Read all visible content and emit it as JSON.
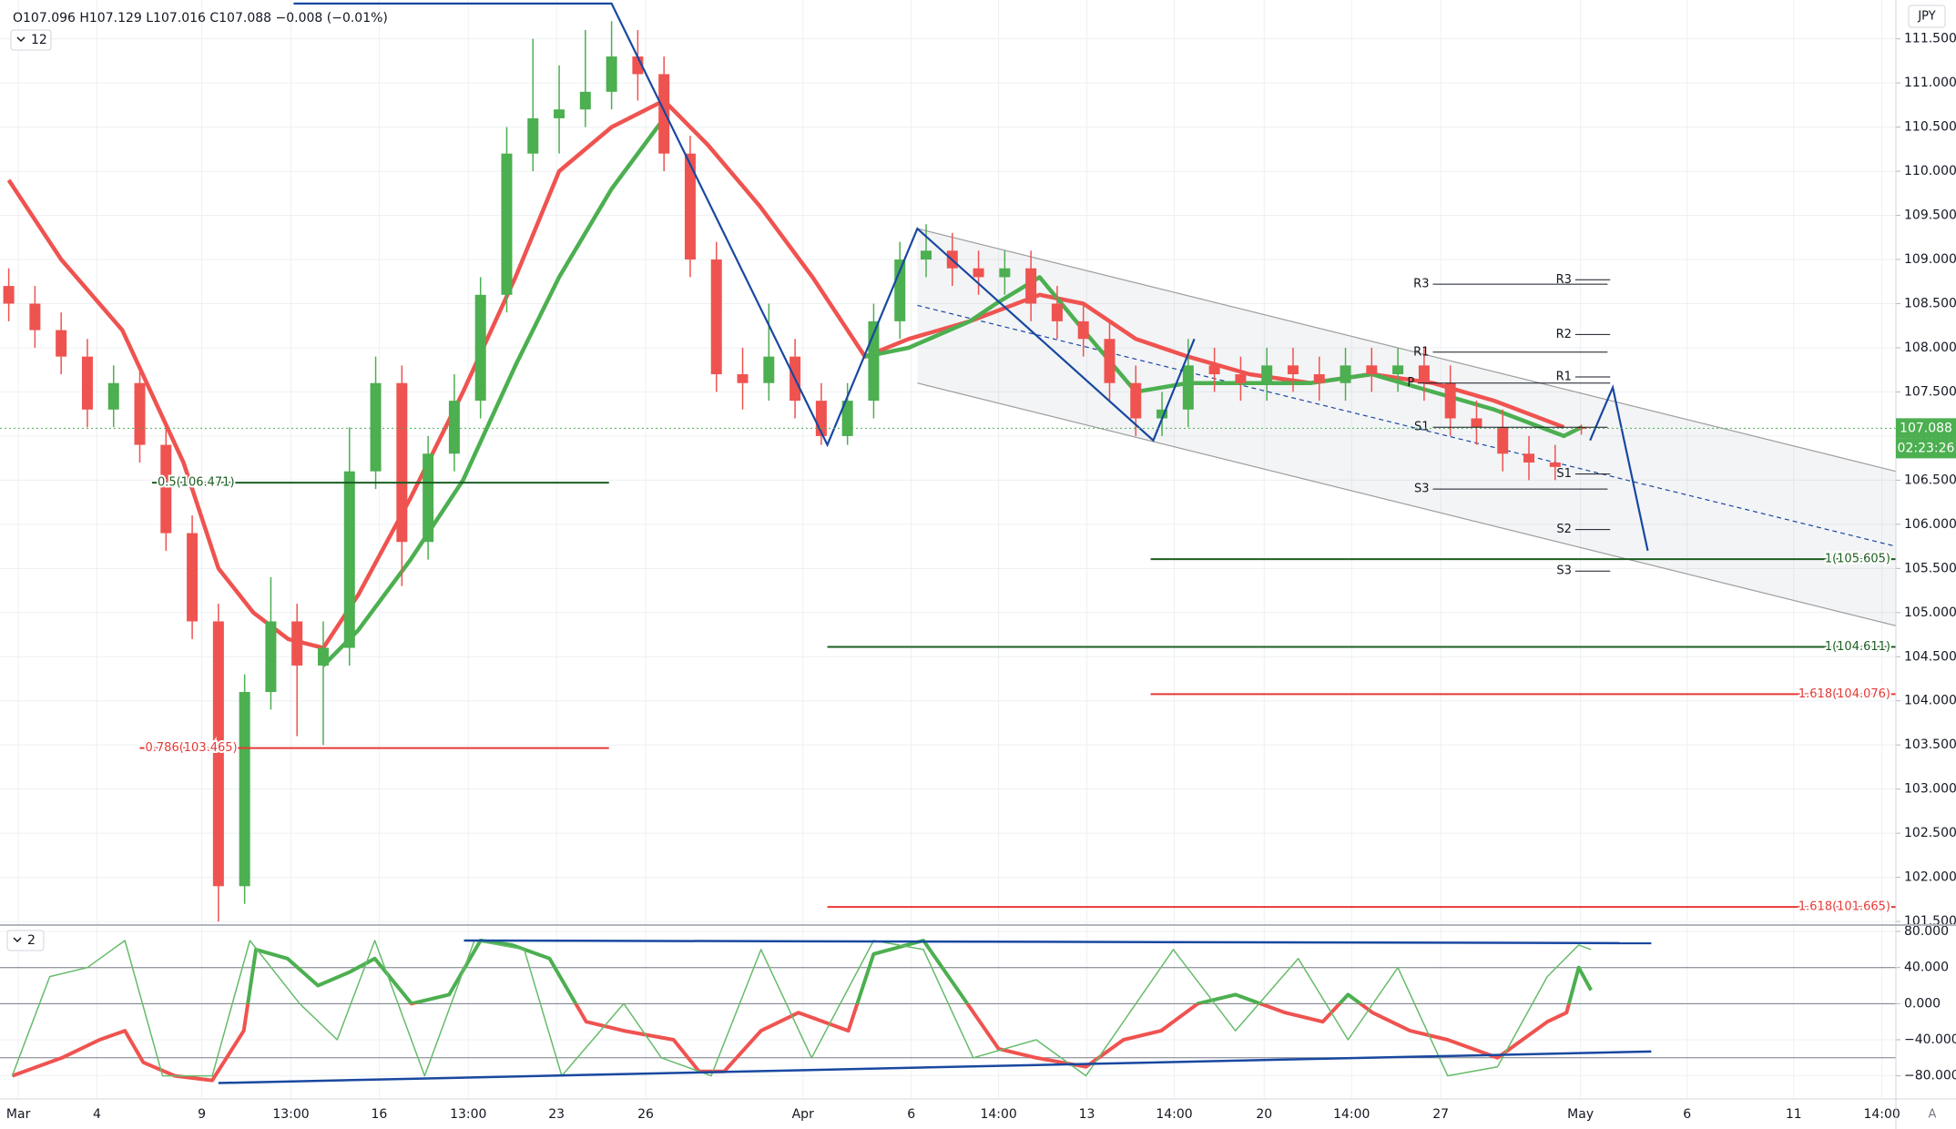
{
  "header": {
    "ohlc": "O107.096 H107.129 L107.016 C107.088 −0.008 (−0.01%)",
    "main_pane_label": "12",
    "osc_pane_label": "2",
    "currency": "JPY",
    "countdown": "02:23:26",
    "auto": "A"
  },
  "chart_data": [
    {
      "type": "candlestick",
      "xlim": [
        0,
        217
      ],
      "xticks": [
        {
          "value": 2.1,
          "label": "Mar"
        },
        {
          "value": 11.1,
          "label": "4"
        },
        {
          "value": 23.1,
          "label": "9"
        },
        {
          "value": 33.3,
          "label": "13:00"
        },
        {
          "value": 43.4,
          "label": "16"
        },
        {
          "value": 53.6,
          "label": "13:00"
        },
        {
          "value": 63.7,
          "label": "23"
        },
        {
          "value": 73.9,
          "label": "26"
        },
        {
          "value": 91.9,
          "label": "Apr"
        },
        {
          "value": 104.3,
          "label": "6"
        },
        {
          "value": 114.3,
          "label": "14:00"
        },
        {
          "value": 124.4,
          "label": "13"
        },
        {
          "value": 134.4,
          "label": "14:00"
        },
        {
          "value": 144.7,
          "label": "20"
        },
        {
          "value": 154.7,
          "label": "14:00"
        },
        {
          "value": 164.9,
          "label": "27"
        },
        {
          "value": 180.9,
          "label": "May"
        },
        {
          "value": 193.1,
          "label": "6"
        },
        {
          "value": 205.3,
          "label": "11"
        },
        {
          "value": 215.4,
          "label": "14:00"
        }
      ],
      "ylim": [
        101.47,
        111.94
      ],
      "yticks": [
        {
          "value": 101.5,
          "label": "101.500"
        },
        {
          "value": 102,
          "label": "102.000"
        },
        {
          "value": 102.5,
          "label": "102.500"
        },
        {
          "value": 103,
          "label": "103.000"
        },
        {
          "value": 103.5,
          "label": "103.500"
        },
        {
          "value": 104,
          "label": "104.000"
        },
        {
          "value": 104.5,
          "label": "104.500"
        },
        {
          "value": 105,
          "label": "105.000"
        },
        {
          "value": 105.5,
          "label": "105.500"
        },
        {
          "value": 106,
          "label": "106.000"
        },
        {
          "value": 106.5,
          "label": "106.500"
        },
        {
          "value": 107,
          "label": "107.000"
        },
        {
          "value": 107.5,
          "label": "107.500"
        },
        {
          "value": 108,
          "label": "108.000"
        },
        {
          "value": 108.5,
          "label": "108.500"
        },
        {
          "value": 109,
          "label": "109.000"
        },
        {
          "value": 109.5,
          "label": "109.500"
        },
        {
          "value": 110,
          "label": "110.000"
        },
        {
          "value": 110.5,
          "label": "110.500"
        },
        {
          "value": 111,
          "label": "111.000"
        },
        {
          "value": 111.5,
          "label": "111.500"
        }
      ],
      "grid": true,
      "colors": {
        "up": "#4caf50",
        "down": "#ef5350"
      },
      "x": [
        1,
        4,
        7,
        10,
        13,
        16,
        19,
        22,
        25,
        28,
        31,
        34,
        37,
        40,
        43,
        46,
        49,
        52,
        55,
        58,
        61,
        64,
        67,
        70,
        73,
        76,
        79,
        82,
        85,
        88,
        91,
        94,
        97,
        100,
        103,
        106,
        109,
        112,
        115,
        118,
        121,
        124,
        127,
        130,
        133,
        136,
        139,
        142,
        145,
        148,
        151,
        154,
        157,
        160,
        163,
        166,
        169,
        172,
        175,
        178,
        181
      ],
      "open": [
        108.7,
        108.5,
        108.2,
        107.9,
        107.3,
        107.6,
        106.9,
        105.9,
        104.9,
        101.9,
        104.1,
        104.9,
        104.4,
        104.6,
        106.6,
        107.6,
        105.8,
        106.8,
        107.4,
        108.6,
        110.2,
        110.6,
        110.7,
        110.9,
        111.3,
        111.1,
        110.2,
        109.0,
        107.7,
        107.6,
        107.9,
        107.4,
        107.0,
        107.4,
        108.3,
        109.0,
        109.1,
        108.9,
        108.8,
        108.9,
        108.5,
        108.3,
        108.1,
        107.6,
        107.2,
        107.3,
        107.8,
        107.7,
        107.6,
        107.8,
        107.7,
        107.6,
        107.8,
        107.7,
        107.8,
        107.6,
        107.2,
        107.1,
        106.8,
        106.7,
        107.096
      ],
      "high": [
        108.9,
        108.7,
        108.4,
        108.1,
        107.8,
        107.8,
        107.1,
        106.1,
        105.1,
        104.3,
        105.4,
        105.1,
        104.9,
        107.1,
        107.9,
        107.8,
        107.0,
        107.7,
        108.8,
        110.5,
        111.5,
        111.2,
        111.6,
        111.7,
        111.6,
        111.3,
        110.4,
        109.2,
        108.0,
        108.5,
        108.1,
        107.6,
        107.6,
        108.5,
        109.2,
        109.4,
        109.3,
        109.1,
        109.1,
        109.1,
        108.7,
        108.5,
        108.3,
        107.8,
        107.5,
        108.1,
        108.0,
        107.9,
        108.0,
        108.0,
        107.9,
        108.0,
        108.0,
        108.0,
        108.0,
        107.8,
        107.4,
        107.3,
        107.0,
        106.9,
        107.129
      ],
      "low": [
        108.3,
        108.0,
        107.7,
        107.1,
        107.1,
        106.7,
        105.7,
        104.7,
        101.5,
        101.7,
        103.9,
        103.6,
        103.5,
        104.4,
        106.4,
        105.3,
        105.6,
        106.6,
        107.2,
        108.4,
        110.0,
        110.2,
        110.5,
        110.7,
        110.8,
        110.0,
        108.8,
        107.5,
        107.3,
        107.4,
        107.2,
        106.9,
        106.9,
        107.2,
        108.1,
        108.8,
        108.7,
        108.6,
        108.6,
        108.3,
        108.1,
        107.9,
        107.4,
        107.0,
        107.0,
        107.1,
        107.5,
        107.4,
        107.4,
        107.5,
        107.4,
        107.4,
        107.5,
        107.5,
        107.4,
        107.0,
        106.9,
        106.6,
        106.5,
        106.5,
        107.016
      ],
      "close": [
        108.5,
        108.2,
        107.9,
        107.3,
        107.6,
        106.9,
        105.9,
        104.9,
        101.9,
        104.1,
        104.9,
        104.4,
        104.6,
        106.6,
        107.6,
        105.8,
        106.8,
        107.4,
        108.6,
        110.2,
        110.6,
        110.7,
        110.9,
        111.3,
        111.1,
        110.2,
        109.0,
        107.7,
        107.6,
        107.9,
        107.4,
        107.0,
        107.4,
        108.3,
        109.0,
        109.1,
        108.9,
        108.8,
        108.9,
        108.5,
        108.3,
        108.1,
        107.6,
        107.2,
        107.3,
        107.8,
        107.7,
        107.6,
        107.8,
        107.7,
        107.6,
        107.8,
        107.7,
        107.8,
        107.6,
        107.2,
        107.1,
        106.8,
        106.7,
        106.65,
        107.088
      ],
      "overlays": [
        {
          "color": "#ef5350",
          "x": [
            1,
            7,
            14,
            21,
            25,
            29,
            33,
            37,
            41,
            47,
            53,
            59,
            64,
            70,
            76,
            81,
            87,
            93,
            99,
            104,
            111,
            119,
            124,
            130,
            136,
            143,
            150,
            157,
            164,
            171,
            179
          ],
          "values": [
            109.9,
            109.0,
            108.2,
            106.7,
            105.5,
            105.0,
            104.7,
            104.6,
            105.2,
            106.3,
            107.5,
            108.8,
            110.0,
            110.5,
            110.8,
            110.3,
            109.6,
            108.8,
            107.9,
            108.1,
            108.3,
            108.6,
            108.5,
            108.1,
            107.9,
            107.7,
            107.6,
            107.7,
            107.6,
            107.4,
            107.1
          ]
        },
        {
          "color": "#4caf50",
          "x": [
            37,
            41,
            47,
            53,
            59,
            64,
            70,
            76,
            88,
            99,
            104,
            111,
            114,
            119,
            124,
            130,
            136,
            143,
            150,
            157,
            164,
            171,
            179,
            181
          ],
          "values": [
            104.4,
            104.8,
            105.6,
            106.5,
            107.8,
            108.8,
            109.8,
            110.6,
            null,
            107.9,
            108.0,
            108.3,
            108.5,
            108.8,
            108.2,
            107.5,
            107.6,
            107.6,
            107.6,
            107.7,
            107.5,
            107.3,
            107.0,
            107.1
          ]
        }
      ],
      "channel": {
        "color": "#9e9e9e",
        "x": [
          105,
          217
        ],
        "upper": [
          109.35,
          106.6
        ],
        "lower": [
          107.6,
          104.85
        ],
        "middle": [
          108.48,
          105.75
        ]
      },
      "zigzag": {
        "color": "#1848a0",
        "x": [
          33.6,
          70,
          94.7,
          105,
          132,
          136.7,
          null,
          182,
          184.6,
          188.6
        ],
        "values": [
          111.9,
          111.9,
          106.9,
          109.35,
          106.95,
          108.1,
          null,
          106.95,
          107.55,
          105.7
        ]
      },
      "fib_levels": [
        {
          "value": 106.471,
          "label": "0.5(106.471)",
          "color": "#1b5e20",
          "x": [
            17.4,
            69.7
          ]
        },
        {
          "value": 103.465,
          "label": "0.786(103.465)",
          "color": "#e53935",
          "x": [
            16,
            69.7
          ]
        },
        {
          "value": 105.605,
          "label": "1(105.605)",
          "color": "#1b5e20",
          "x": [
            131.7,
            217
          ]
        },
        {
          "value": 104.611,
          "label": "1(104.611)",
          "color": "#1b5e20",
          "x": [
            94.7,
            217
          ]
        },
        {
          "value": 104.076,
          "label": "1.618(104.076)",
          "color": "#e53935",
          "x": [
            131.7,
            217
          ]
        },
        {
          "value": 101.665,
          "label": "1.618(101.665)",
          "color": "#e53935",
          "x": [
            94.7,
            217
          ]
        }
      ],
      "pivots": [
        {
          "label": "R3",
          "value": 108.72,
          "x": [
            164,
            184
          ]
        },
        {
          "label": "R1",
          "value": 107.95,
          "x": [
            164,
            184
          ]
        },
        {
          "label": "S1",
          "value": 107.1,
          "x": [
            164,
            184
          ]
        },
        {
          "label": "S3",
          "value": 106.4,
          "x": [
            164,
            184
          ]
        },
        {
          "label": "R3",
          "value": 108.77,
          "x": [
            180.3,
            184.3
          ]
        },
        {
          "label": "R2",
          "value": 108.15,
          "x": [
            180.3,
            184.3
          ]
        },
        {
          "label": "R1",
          "value": 107.67,
          "x": [
            180.3,
            184.3
          ]
        },
        {
          "label": "P",
          "value": 107.6,
          "x": [
            162.3,
            184.3
          ]
        },
        {
          "label": "S1",
          "value": 106.57,
          "x": [
            180.3,
            184.3
          ]
        },
        {
          "label": "S2",
          "value": 105.94,
          "x": [
            180.3,
            184.3
          ]
        },
        {
          "label": "S3",
          "value": 105.47,
          "x": [
            180.3,
            184.3
          ]
        }
      ]
    },
    {
      "type": "line",
      "xlim": [
        0,
        217
      ],
      "ylim": [
        -104.6,
        85.1
      ],
      "yticks": [
        {
          "value": 80,
          "label": "80.000"
        },
        {
          "value": 40,
          "label": "40.000"
        },
        {
          "value": 0,
          "label": "0.000"
        },
        {
          "value": -40,
          "label": "−40.000"
        },
        {
          "value": -80,
          "label": "−80.000"
        }
      ],
      "levels": [
        40,
        0,
        -60
      ],
      "lines": [
        {
          "colors": [
            "#4caf50",
            "#ef5350"
          ],
          "width": 4,
          "x": [
            1.4,
            7.1,
            11.4,
            14.3,
            16.4,
            20,
            24.3,
            27.9,
            29.3,
            32.9,
            36.4,
            40,
            42.9,
            47.1,
            51.4,
            55,
            58.6,
            62.9,
            67.1,
            71.4,
            77.1,
            80,
            82.9,
            87.1,
            91.4,
            97.1,
            100,
            105.7,
            110,
            114.3,
            118.6,
            124.3,
            128.6,
            132.9,
            137.1,
            141.4,
            147.1,
            151.4,
            154.3,
            157.1,
            161.4,
            165.7,
            171.4,
            177.1,
            179.3,
            180.7,
            182.1
          ],
          "values": [
            -80,
            -60,
            -40,
            -30,
            -65,
            -80,
            -85,
            -30,
            60,
            50,
            20,
            35,
            50,
            0,
            10,
            70,
            65,
            50,
            -20,
            -30,
            -40,
            -75,
            -75,
            -30,
            -10,
            -30,
            55,
            70,
            10,
            -50,
            -60,
            -70,
            -40,
            -30,
            0,
            10,
            -10,
            -20,
            10,
            -10,
            -30,
            -40,
            -60,
            -20,
            -10,
            40,
            15
          ]
        },
        {
          "colors": [
            "#66bb6a",
            "#66bb6a"
          ],
          "width": 1.5,
          "x": [
            1.4,
            5.7,
            10,
            14.3,
            18.6,
            24.3,
            28.6,
            34.3,
            38.6,
            42.9,
            48.6,
            54.3,
            60,
            64.3,
            71.4,
            75.7,
            81.4,
            87.1,
            92.9,
            100,
            105.7,
            111.4,
            118.6,
            124.3,
            134.3,
            141.4,
            148.6,
            154.3,
            160,
            165.7,
            171.4,
            177.1,
            180.7,
            182.1
          ],
          "values": [
            -80,
            30,
            40,
            70,
            -80,
            -80,
            70,
            0,
            -40,
            70,
            -80,
            70,
            60,
            -80,
            0,
            -60,
            -80,
            60,
            -60,
            70,
            60,
            -60,
            -40,
            -80,
            60,
            -30,
            50,
            -40,
            40,
            -80,
            -70,
            30,
            65,
            60
          ]
        }
      ],
      "trendlines": [
        {
          "color": "#1848a0",
          "x": [
            53.1,
            189
          ],
          "values": [
            70,
            67
          ]
        },
        {
          "color": "#1848a0",
          "x": [
            25,
            189
          ],
          "values": [
            -88,
            -53
          ]
        }
      ]
    }
  ]
}
